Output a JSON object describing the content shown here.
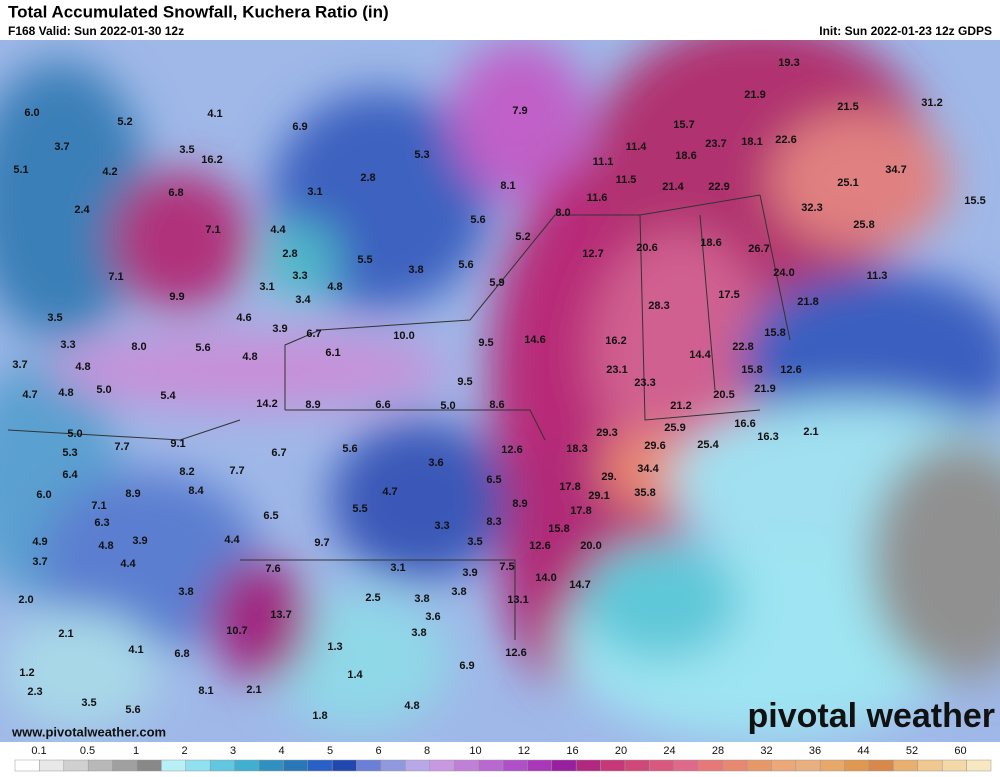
{
  "header": {
    "title": "Total Accumulated Snowfall, Kuchera Ratio (in)",
    "valid": "F168 Valid: Sun 2022-01-30 12z",
    "init": "Init: Sun 2022-01-23 12z GDPS"
  },
  "map": {
    "labels": [
      "6.0",
      "5.2",
      "4.1",
      "6.9",
      "7.9",
      "3.7",
      "3.5",
      "16.2",
      "5.3",
      "5.1",
      "4.2",
      "3.1",
      "2.8",
      "6.8",
      "8.1",
      "2.4",
      "8.0",
      "5.6",
      "7.1",
      "4.4",
      "2.8",
      "5.2",
      "5.5",
      "3.8",
      "5.6",
      "7.1",
      "3.3",
      "3.1",
      "4.8",
      "5.9",
      "9.9",
      "3.4",
      "3.5",
      "4.6",
      "3.9",
      "6.7",
      "10.0",
      "3.3",
      "8.0",
      "5.6",
      "9.5",
      "14.6",
      "6.1",
      "4.8",
      "3.7",
      "4.8",
      "9.5",
      "5.0",
      "5.4",
      "4.7",
      "4.8",
      "14.2",
      "8.9",
      "6.6",
      "5.0",
      "8.6",
      "5.0",
      "7.7",
      "9.1",
      "5.3",
      "6.7",
      "5.6",
      "3.6",
      "12.6",
      "18.3",
      "6.4",
      "8.2",
      "7.7",
      "6.5",
      "6.0",
      "8.9",
      "8.4",
      "4.7",
      "7.1",
      "17.8",
      "8.9",
      "29.1",
      "5.5",
      "6.5",
      "6.3",
      "3.3",
      "8.3",
      "17.8",
      "15.8",
      "4.9",
      "4.8",
      "3.9",
      "4.4",
      "9.7",
      "3.5",
      "12.6",
      "20.0",
      "3.7",
      "4.4",
      "7.6",
      "3.1",
      "3.9",
      "7.5",
      "14.0",
      "14.7",
      "3.8",
      "2.5",
      "3.8",
      "3.8",
      "13.1",
      "2.0",
      "13.7",
      "3.6",
      "10.7",
      "2.1",
      "3.8",
      "4.1",
      "1.3",
      "6.8",
      "12.6",
      "6.9",
      "1.2",
      "1.4",
      "8.1",
      "2.1",
      "2.3",
      "3.5",
      "5.6",
      "1.8",
      "4.8",
      "19.3",
      "21.9",
      "21.5",
      "31.2",
      "15.7",
      "11.4",
      "23.7",
      "18.1",
      "22.6",
      "18.6",
      "11.1",
      "11.5",
      "21.4",
      "22.9",
      "25.1",
      "34.7",
      "11.6",
      "32.3",
      "15.5",
      "20.6",
      "18.6",
      "26.7",
      "25.8",
      "12.7",
      "24.0",
      "11.3",
      "17.5",
      "21.8",
      "28.3",
      "16.2",
      "15.8",
      "22.8",
      "14.4",
      "23.1",
      "15.8",
      "12.6",
      "23.3",
      "20.5",
      "21.9",
      "21.2",
      "29.3",
      "25.9",
      "16.6",
      "29.6",
      "25.4",
      "16.3",
      "34.4",
      "29.",
      "35.8",
      "2.1"
    ]
  },
  "colorbar": {
    "ticks": [
      "0.1",
      "0.5",
      "1",
      "2",
      "3",
      "4",
      "5",
      "6",
      "8",
      "10",
      "12",
      "16",
      "20",
      "24",
      "28",
      "32",
      "36",
      "44",
      "52",
      "60"
    ]
  },
  "footer": {
    "url": "www.pivotalweather.com",
    "brand": "pivotal weather"
  }
}
